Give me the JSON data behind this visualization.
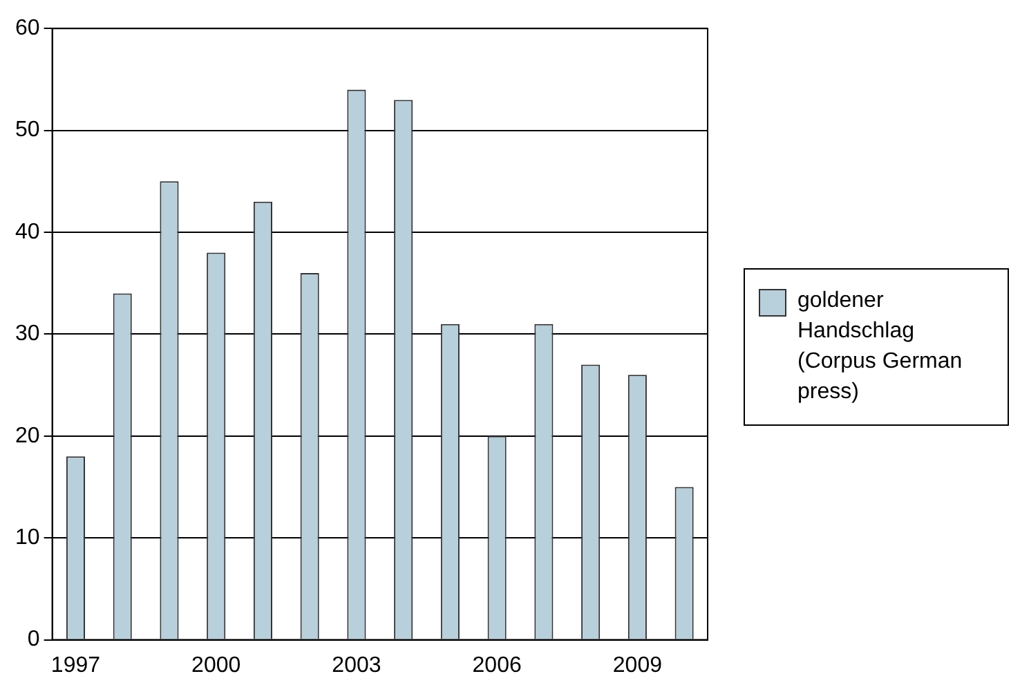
{
  "chart_data": {
    "type": "bar",
    "categories": [
      "1997",
      null,
      null,
      "2000",
      null,
      null,
      "2003",
      null,
      null,
      "2006",
      null,
      null,
      "2009",
      null
    ],
    "series": [
      {
        "name": "goldener Handschlag (Corpus German press)",
        "color": "#b8cfdc",
        "values": [
          18,
          34,
          45,
          38,
          43,
          36,
          54,
          53,
          31,
          20,
          31,
          27,
          26,
          15
        ]
      }
    ],
    "ylim": [
      0,
      60
    ],
    "yticks": [
      0,
      10,
      20,
      30,
      40,
      50,
      60
    ],
    "grid": "y",
    "legend": "right"
  }
}
